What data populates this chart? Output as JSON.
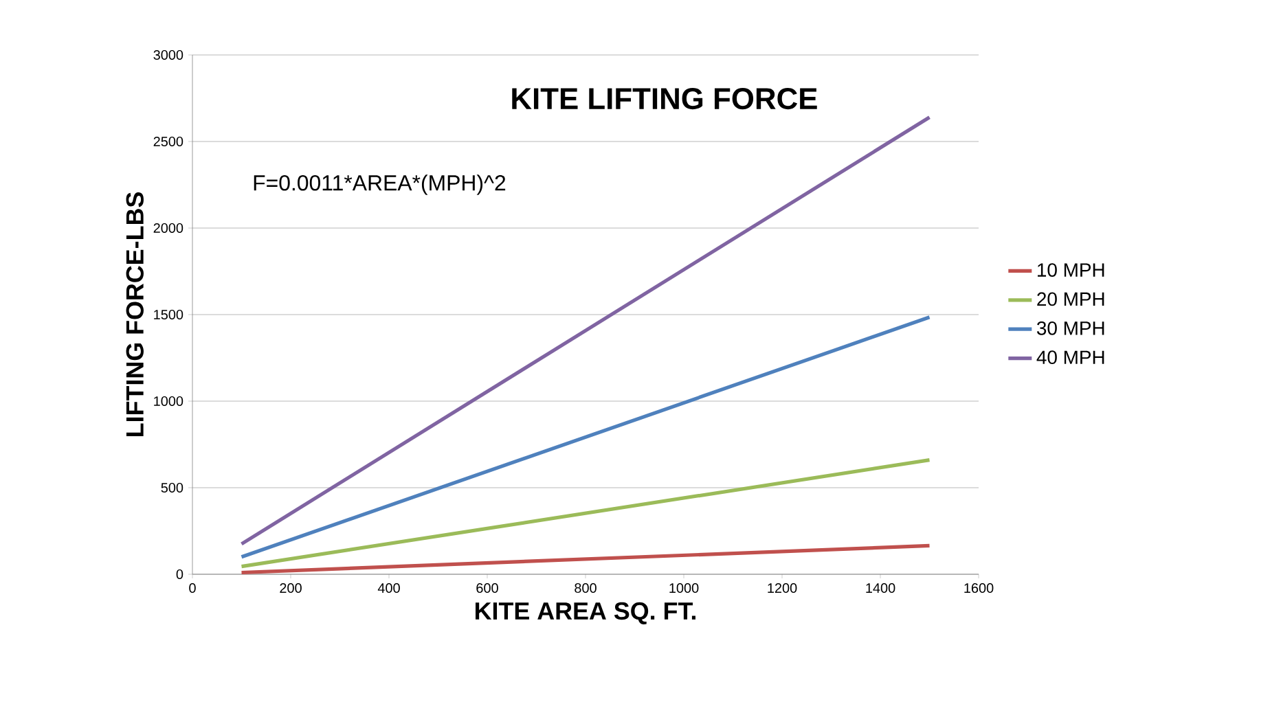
{
  "chart_data": {
    "type": "line",
    "title": "KITE LIFTING FORCE",
    "xlabel": "KITE AREA SQ. FT.",
    "ylabel": "LIFTING FORCE-LBS",
    "annotations": [
      "F=0.0011*AREA*(MPH)^2"
    ],
    "x": [
      100,
      1500
    ],
    "series": [
      {
        "name": "10 MPH",
        "color": "#c0504d",
        "values": [
          10,
          165
        ]
      },
      {
        "name": "20 MPH",
        "color": "#9bbb59",
        "values": [
          45,
          660
        ]
      },
      {
        "name": "30 MPH",
        "color": "#4f81bd",
        "values": [
          100,
          1485
        ]
      },
      {
        "name": "40 MPH",
        "color": "#8064a2",
        "values": [
          175,
          2640
        ]
      }
    ],
    "xlim": [
      0,
      1600
    ],
    "xticks": [
      0,
      200,
      400,
      600,
      800,
      1000,
      1200,
      1400,
      1600
    ],
    "ylim": [
      0,
      3000
    ],
    "yticks": [
      0,
      500,
      1000,
      1500,
      2000,
      2500,
      3000
    ],
    "grid": "y",
    "legend": "right",
    "marker": "none",
    "line_style": "solid"
  }
}
